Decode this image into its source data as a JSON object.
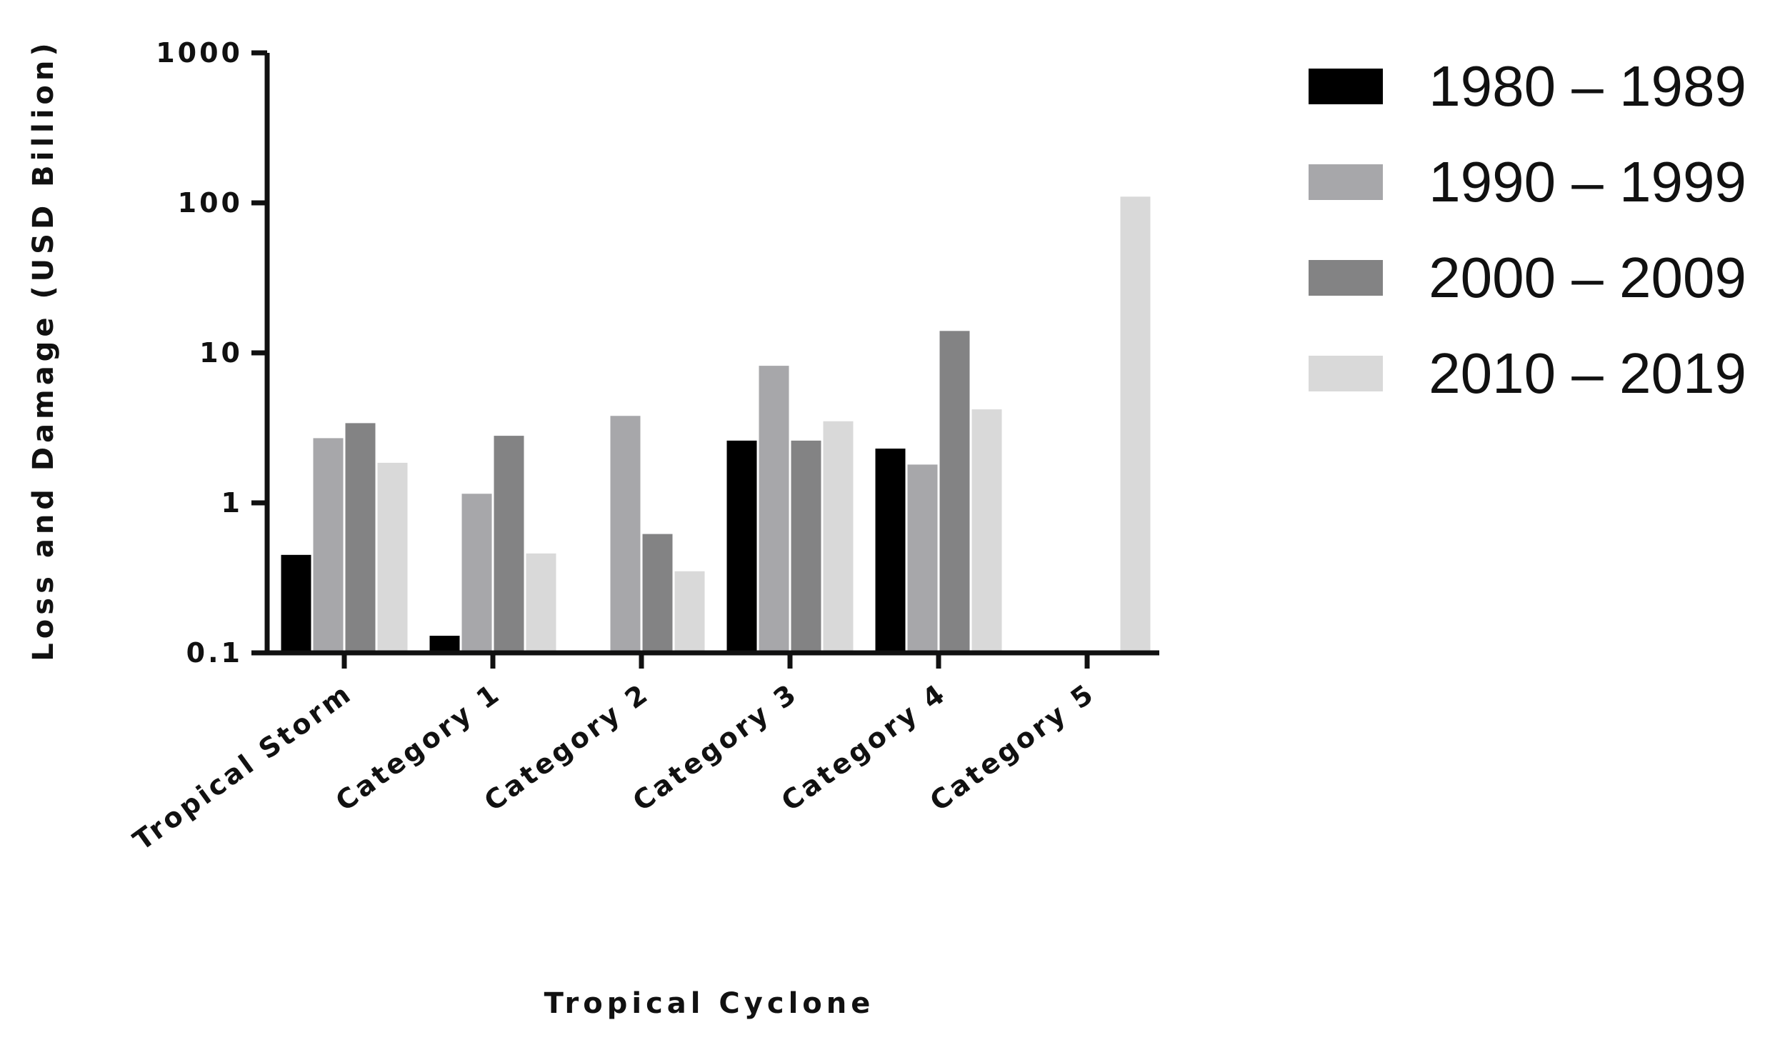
{
  "chart_data": {
    "type": "bar",
    "title": "",
    "xlabel": "Tropical Cyclone",
    "ylabel": "Loss and Damage (USD Billion)",
    "y_scale": "log",
    "ylim": [
      0.1,
      1000
    ],
    "y_ticks": [
      "1000",
      "100",
      "10",
      "1",
      "0.1"
    ],
    "y_tick_values": [
      1000,
      100,
      10,
      1,
      0.1
    ],
    "grid": false,
    "legend_position": "right",
    "categories": [
      "Tropical Storm",
      "Category 1",
      "Category 2",
      "Category 3",
      "Category 4",
      "Category 5"
    ],
    "series": [
      {
        "name": "1980 – 1989",
        "color": "#000000",
        "values": [
          0.45,
          0.13,
          null,
          2.6,
          2.3,
          null
        ]
      },
      {
        "name": "1990 – 1999",
        "color": "#a7a7aa",
        "values": [
          2.7,
          1.15,
          3.8,
          8.2,
          1.8,
          null
        ]
      },
      {
        "name": "2000 – 2009",
        "color": "#838384",
        "values": [
          3.4,
          2.8,
          0.62,
          2.6,
          14,
          null
        ]
      },
      {
        "name": "2010 – 2019",
        "color": "#d9d9d9",
        "values": [
          1.85,
          0.46,
          0.35,
          3.5,
          4.2,
          110
        ]
      }
    ]
  }
}
